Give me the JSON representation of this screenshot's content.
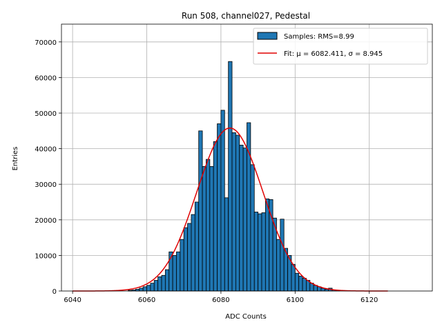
{
  "chart_data": {
    "type": "bar",
    "title": "Run 508, channel027, Pedestal",
    "xlabel": "ADC Counts",
    "ylabel": "Entries",
    "xlim": [
      6037,
      6137
    ],
    "ylim": [
      0,
      75000
    ],
    "xticks": [
      6040,
      6060,
      6080,
      6100,
      6120
    ],
    "yticks": [
      0,
      10000,
      20000,
      30000,
      40000,
      50000,
      60000,
      70000
    ],
    "grid": true,
    "legend_position": "top-right",
    "histogram": {
      "name": "Samples: RMS=8.99",
      "color": "#1f77b4",
      "edgecolor": "#000000",
      "bin_width": 1,
      "bin_edges_start": 6055,
      "counts": [
        200,
        300,
        500,
        800,
        1200,
        1600,
        2200,
        3000,
        4000,
        4400,
        6000,
        11000,
        10000,
        11000,
        14500,
        17800,
        19000,
        21500,
        25000,
        45000,
        35000,
        37000,
        35000,
        42000,
        47000,
        50800,
        26200,
        64500,
        44500,
        43800,
        41000,
        40200,
        47300,
        35500,
        22200,
        21700,
        22000,
        25900,
        25700,
        20500,
        14500,
        20200,
        12000,
        10000,
        7500,
        5000,
        4200,
        3600,
        3000,
        2200,
        1600,
        1200,
        800,
        500,
        800,
        300,
        200
      ]
    },
    "fit": {
      "name": "Fit: μ = 6082.411, σ = 8.945",
      "color": "#e00000",
      "mu": 6082.411,
      "sigma": 8.945,
      "amplitude": 45800,
      "x_range": [
        6040,
        6125
      ]
    }
  }
}
